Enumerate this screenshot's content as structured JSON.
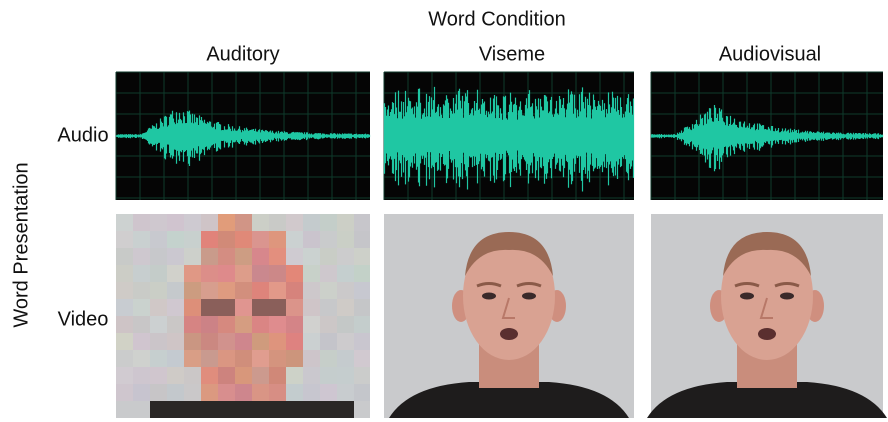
{
  "title": "Word Condition",
  "columns": [
    "Auditory",
    "Viseme",
    "Audiovisual"
  ],
  "row_axis_label": "Word Presentation",
  "rows": [
    "Audio",
    "Video"
  ]
}
